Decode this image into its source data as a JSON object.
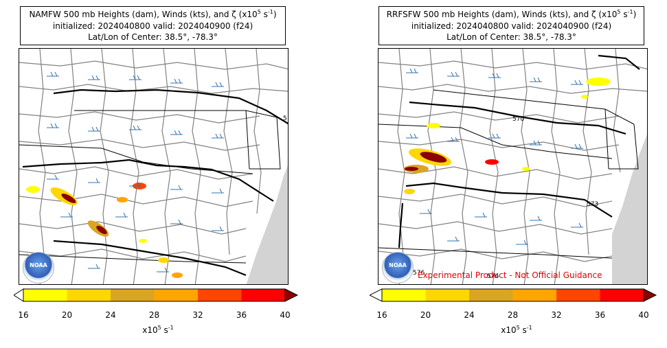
{
  "panels": [
    {
      "title_model": "NAMFW",
      "title_line1": "NAMFW 500 mb Heights (dam), Winds (kts), and ζ (x10",
      "title_line1_sup": "5",
      "title_line1_tail": " s",
      "title_line1_sup2": "-1",
      "title_line1_end": ")",
      "title_line2": "initialized: 2024040800 valid: 2024040900 (f24)",
      "title_line3": "Lat/Lon of Center: 38.5°, -78.3°",
      "contour_labels": [
        "5"
      ],
      "disclaimer": ""
    },
    {
      "title_model": "RRFSFW",
      "title_line1": "RRFSFW 500 mb Heights (dam), Winds (kts), and ζ (x10",
      "title_line1_sup": "5",
      "title_line1_tail": " s",
      "title_line1_sup2": "-1",
      "title_line1_end": ")",
      "title_line2": "initialized: 2024040800 valid: 2024040900 (f24)",
      "title_line3": "Lat/Lon of Center: 38.5°, -78.3°",
      "contour_labels": [
        "570",
        "573",
        "576",
        "576"
      ],
      "disclaimer": "Experimental Product - Not Official Guidance"
    }
  ],
  "logo_text": "NOAA",
  "colorbar": {
    "ticks": [
      "16",
      "20",
      "24",
      "28",
      "32",
      "36",
      "40"
    ],
    "label_main": "x10",
    "label_sup": "5",
    "label_tail": " s",
    "label_sup2": "-1",
    "colors": [
      "#ffff00",
      "#ffd700",
      "#daa520",
      "#ffa500",
      "#ff4500",
      "#ff0000"
    ],
    "under_color": "#ffffff",
    "over_color": "#8b0000"
  },
  "map_colors": {
    "county": "#808080",
    "state": "#000000",
    "ocean": "#d3d3d3",
    "wind_barb": "#3070b0",
    "height_contour": "#000000"
  }
}
